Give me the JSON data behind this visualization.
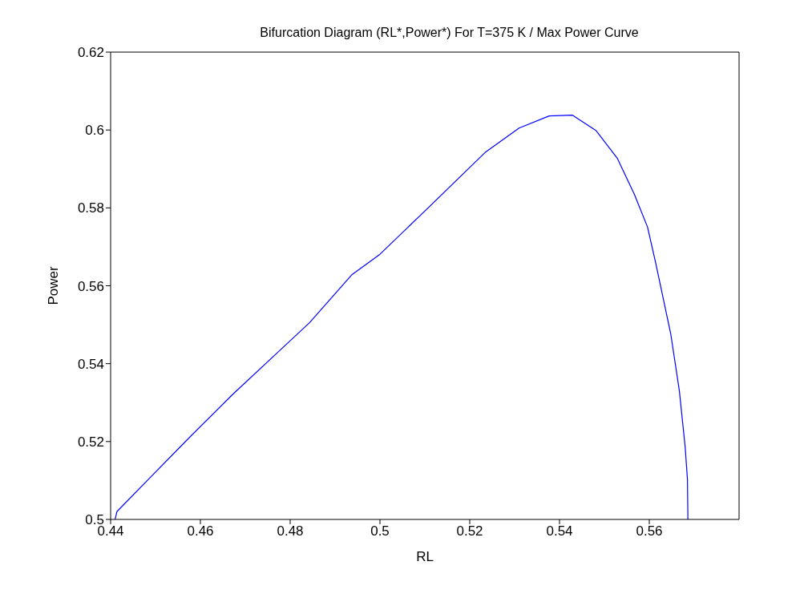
{
  "chart_data": {
    "type": "line",
    "title": "Bifurcation Diagram (RL*,Power*) For T=375 K / Max Power Curve",
    "xlabel": "RL",
    "ylabel": "Power",
    "x": [
      0.441,
      0.4414,
      0.448,
      0.4576,
      0.4671,
      0.4776,
      0.4843,
      0.4938,
      0.5,
      0.511,
      0.5234,
      0.531,
      0.5377,
      0.5429,
      0.5481,
      0.5529,
      0.5567,
      0.5596,
      0.5614,
      0.5648,
      0.5667,
      0.568,
      0.5685,
      0.5686
    ],
    "series": [
      {
        "color": "#0000ff",
        "values": [
          0.5,
          0.502,
          0.5098,
          0.5211,
          0.532,
          0.5433,
          0.5505,
          0.5629,
          0.5681,
          0.5803,
          0.5942,
          0.6005,
          0.6036,
          0.6038,
          0.5999,
          0.5927,
          0.5834,
          0.5751,
          0.566,
          0.5475,
          0.533,
          0.5185,
          0.5103,
          0.5
        ]
      }
    ],
    "xlim": [
      0.44,
      0.58
    ],
    "xticks": [
      0.44,
      0.46,
      0.48,
      0.5,
      0.52,
      0.54,
      0.56
    ],
    "ylim": [
      0.5,
      0.62
    ],
    "yticks": [
      0.5,
      0.52,
      0.54,
      0.56,
      0.58,
      0.6,
      0.62
    ],
    "grid": false,
    "marker": "none",
    "line_style": "solid"
  }
}
